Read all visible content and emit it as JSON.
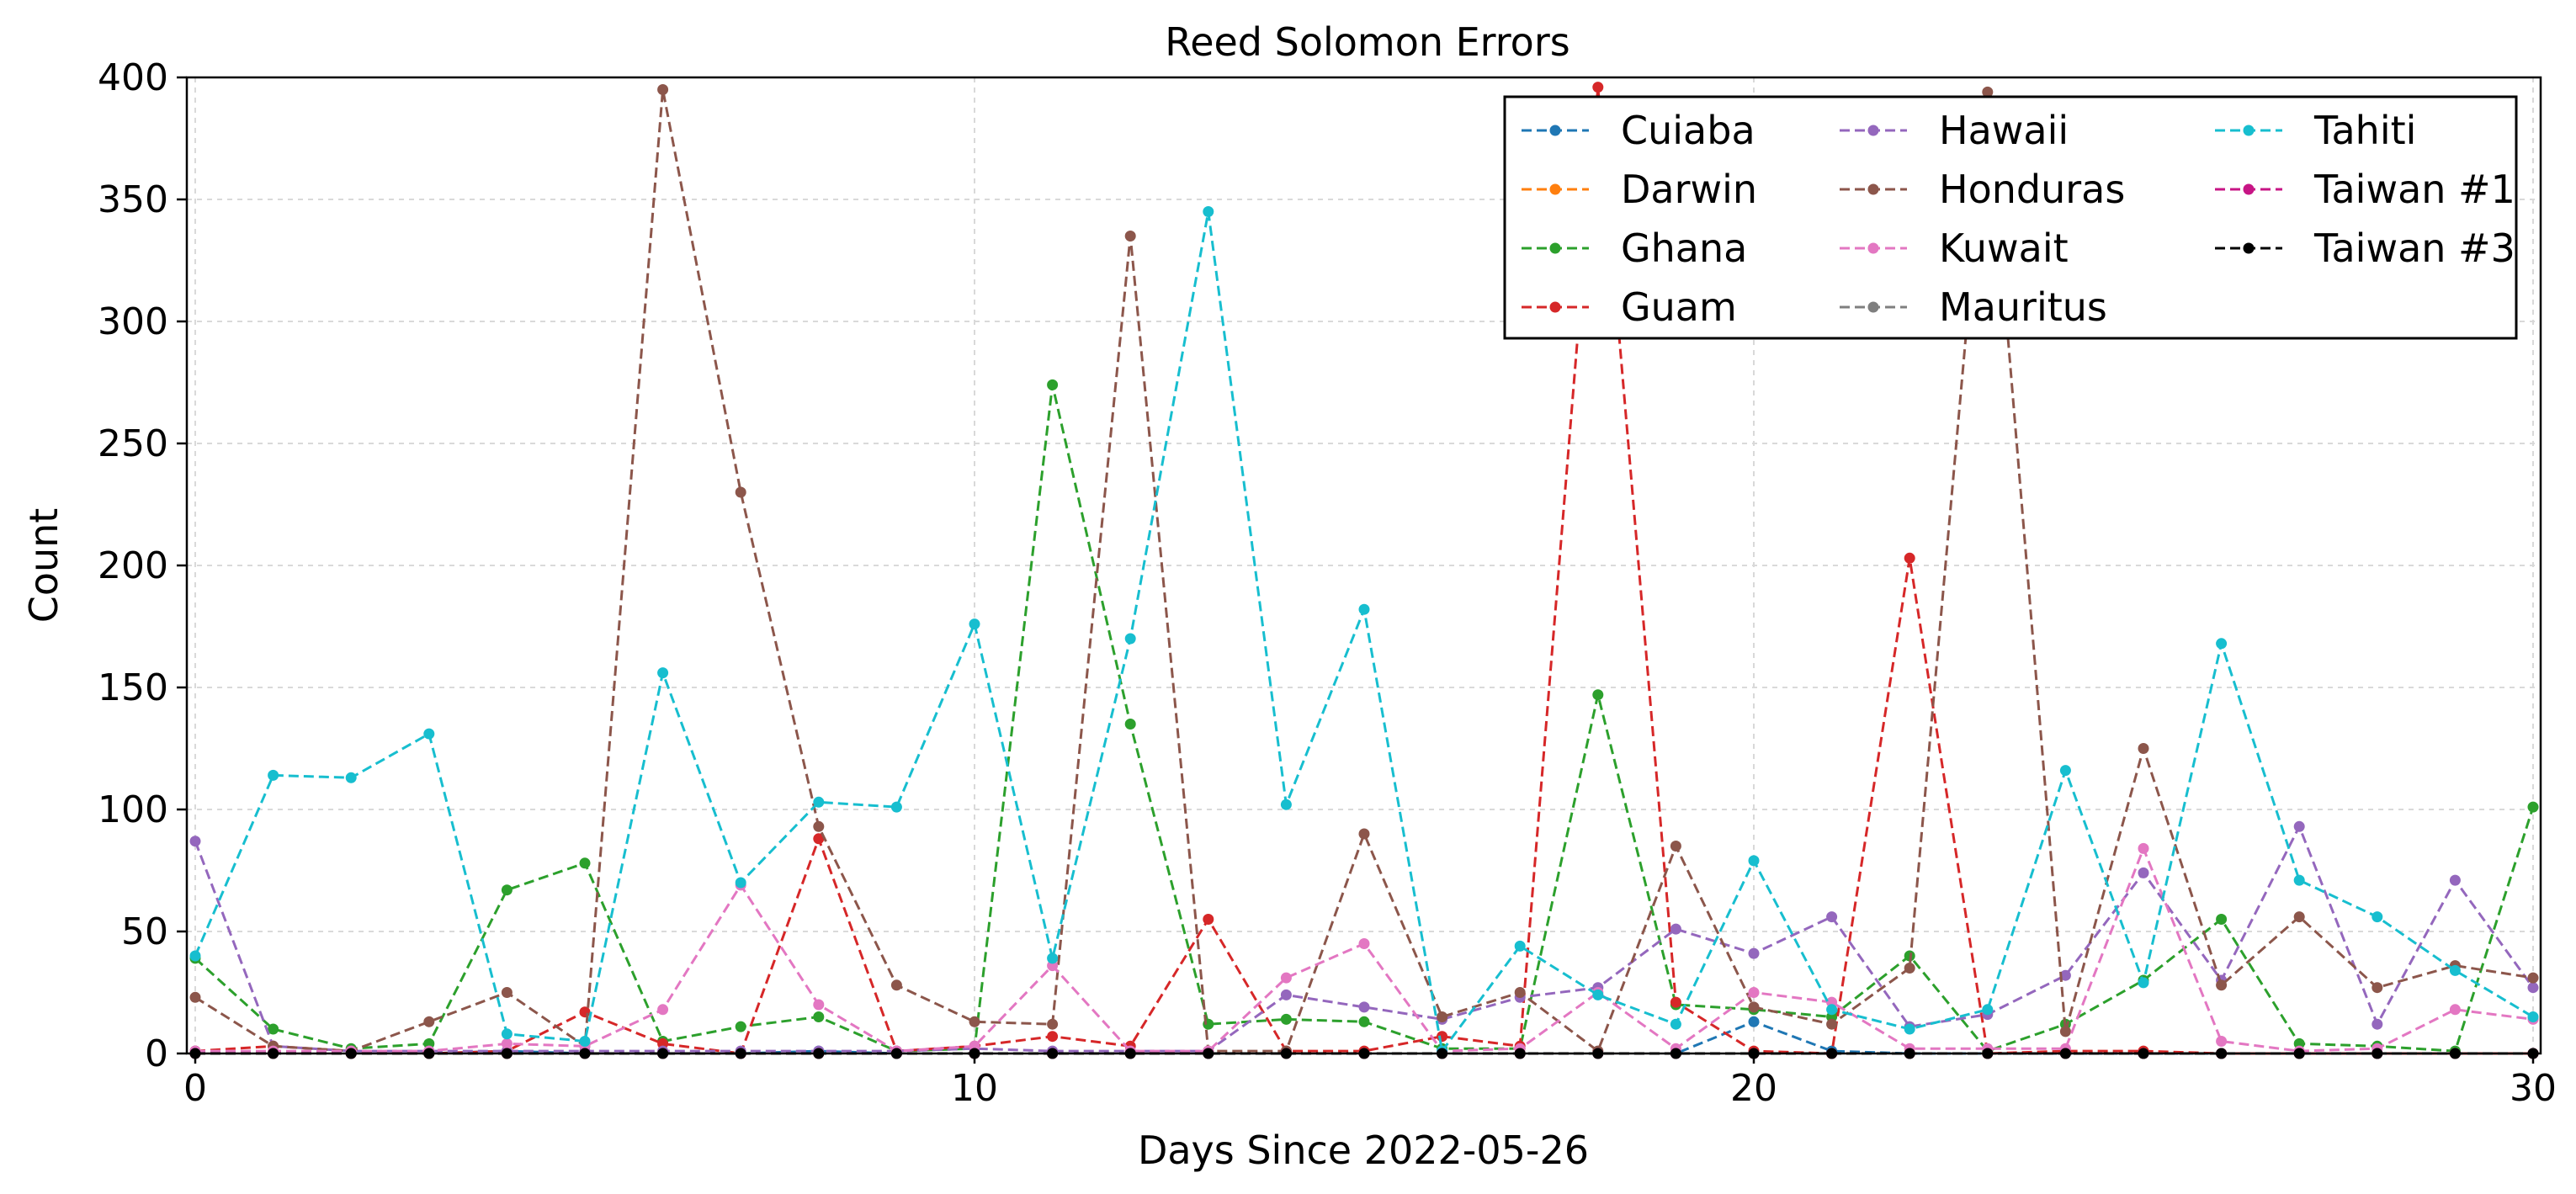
{
  "chart_data": {
    "type": "line",
    "title": "Reed Solomon Errors",
    "xlabel": "Days Since 2022-05-26",
    "ylabel": "Count",
    "xlim": [
      0,
      30
    ],
    "ylim": [
      0,
      400
    ],
    "xticks": [
      0,
      10,
      20,
      30
    ],
    "yticks": [
      0,
      50,
      100,
      150,
      200,
      250,
      300,
      350,
      400
    ],
    "grid": true,
    "legend_position": "top-right",
    "line_style": "dashed",
    "marker": "circle",
    "x": [
      0,
      1,
      2,
      3,
      4,
      5,
      6,
      7,
      8,
      9,
      10,
      11,
      12,
      13,
      14,
      15,
      16,
      17,
      18,
      19,
      20,
      21,
      22,
      23,
      24,
      25,
      26,
      27,
      28,
      29,
      30
    ],
    "series": [
      {
        "name": "Cuiaba",
        "color": "#1f77b4",
        "values": [
          1,
          0,
          0,
          0,
          1,
          0,
          0,
          0,
          1,
          0,
          0,
          0,
          0,
          0,
          0,
          0,
          0,
          0,
          0,
          0,
          13,
          1,
          0,
          0,
          0,
          0,
          0,
          0,
          0,
          0,
          0
        ]
      },
      {
        "name": "Darwin",
        "color": "#ff7f0e",
        "values": [
          0,
          0,
          0,
          0,
          0,
          0,
          0,
          0,
          0,
          0,
          0,
          0,
          0,
          0,
          0,
          0,
          0,
          0,
          0,
          0,
          0,
          0,
          0,
          0,
          0,
          0,
          0,
          0,
          0,
          0,
          0
        ]
      },
      {
        "name": "Ghana",
        "color": "#2ca02c",
        "values": [
          39,
          10,
          2,
          4,
          67,
          78,
          5,
          11,
          15,
          1,
          2,
          274,
          135,
          12,
          14,
          13,
          2,
          2,
          147,
          20,
          18,
          15,
          40,
          1,
          12,
          30,
          55,
          4,
          3,
          1,
          101
        ]
      },
      {
        "name": "Guam",
        "color": "#d62728",
        "values": [
          1,
          3,
          1,
          0,
          1,
          17,
          4,
          0,
          88,
          1,
          3,
          7,
          3,
          55,
          1,
          1,
          7,
          3,
          396,
          21,
          1,
          0,
          203,
          0,
          1,
          1,
          0,
          0,
          0,
          0,
          0
        ]
      },
      {
        "name": "Hawaii",
        "color": "#9467bd",
        "values": [
          87,
          3,
          1,
          1,
          1,
          1,
          1,
          1,
          1,
          1,
          2,
          1,
          1,
          1,
          24,
          19,
          14,
          23,
          27,
          51,
          41,
          56,
          11,
          16,
          32,
          74,
          30,
          93,
          12,
          71,
          27
        ]
      },
      {
        "name": "Honduras",
        "color": "#8c564b",
        "values": [
          23,
          3,
          1,
          13,
          25,
          3,
          395,
          230,
          93,
          28,
          13,
          12,
          335,
          1,
          1,
          90,
          15,
          25,
          1,
          85,
          19,
          12,
          35,
          394,
          9,
          125,
          28,
          56,
          27,
          36,
          31
        ]
      },
      {
        "name": "Kuwait",
        "color": "#e377c2",
        "values": [
          1,
          1,
          1,
          1,
          4,
          3,
          18,
          69,
          20,
          1,
          3,
          36,
          1,
          1,
          31,
          45,
          1,
          2,
          25,
          2,
          25,
          21,
          2,
          2,
          2,
          84,
          5,
          1,
          2,
          18,
          14
        ]
      },
      {
        "name": "Mauritus",
        "color": "#7f7f7f",
        "values": [
          0,
          0,
          0,
          0,
          0,
          0,
          0,
          0,
          0,
          0,
          0,
          0,
          0,
          0,
          0,
          0,
          0,
          0,
          0,
          0,
          0,
          0,
          0,
          0,
          0,
          0,
          0,
          0,
          0,
          0,
          0
        ]
      },
      {
        "name": "Tahiti",
        "color": "#17becf",
        "values": [
          40,
          114,
          113,
          131,
          8,
          5,
          156,
          70,
          103,
          101,
          176,
          39,
          170,
          345,
          102,
          182,
          1,
          44,
          24,
          12,
          79,
          18,
          10,
          18,
          116,
          29,
          168,
          71,
          56,
          34,
          15
        ]
      },
      {
        "name": "Taiwan #1",
        "color": "#c71585",
        "values": [
          0,
          0,
          0,
          0,
          0,
          0,
          0,
          0,
          0,
          0,
          0,
          0,
          0,
          0,
          0,
          0,
          0,
          0,
          0,
          0,
          0,
          0,
          0,
          0,
          0,
          0,
          0,
          0,
          0,
          0,
          0
        ]
      },
      {
        "name": "Taiwan #3",
        "color": "#000000",
        "values": [
          0,
          0,
          0,
          0,
          0,
          0,
          0,
          0,
          0,
          0,
          0,
          0,
          0,
          0,
          0,
          0,
          0,
          0,
          0,
          0,
          0,
          0,
          0,
          0,
          0,
          0,
          0,
          0,
          0,
          0,
          0
        ]
      }
    ]
  }
}
